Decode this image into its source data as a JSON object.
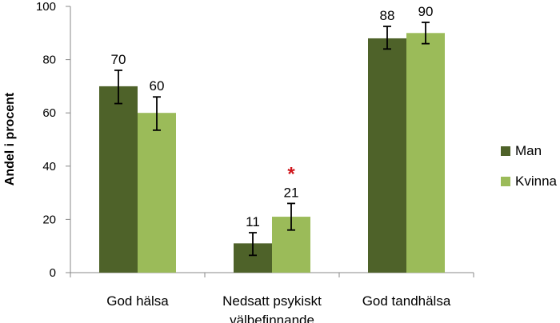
{
  "chart_data": {
    "type": "bar",
    "title": "",
    "xlabel": "",
    "ylabel": "Andel i procent",
    "ylim": [
      0,
      100
    ],
    "yticks": [
      0,
      20,
      40,
      60,
      80,
      100
    ],
    "grid": false,
    "legend_position": "right",
    "categories": [
      [
        "God hälsa"
      ],
      [
        "Nedsatt psykiskt",
        "välbefinnande"
      ],
      [
        "God tandhälsa"
      ]
    ],
    "series": [
      {
        "name": "Man",
        "color": "#4e6229",
        "values": [
          70,
          11,
          88
        ],
        "labels": [
          "70",
          "11",
          "88"
        ],
        "error_low": [
          63.5,
          6.5,
          84
        ],
        "error_high": [
          76,
          15,
          92.5
        ]
      },
      {
        "name": "Kvinna",
        "color": "#9bbb59",
        "values": [
          60,
          21,
          90
        ],
        "labels": [
          "60",
          "21",
          "90"
        ],
        "error_low": [
          53.5,
          16,
          86
        ],
        "error_high": [
          66,
          26,
          94
        ]
      }
    ],
    "annotations": [
      {
        "text": "*",
        "category_index": 1,
        "series_index": 1,
        "color": "#d0171d"
      }
    ]
  }
}
